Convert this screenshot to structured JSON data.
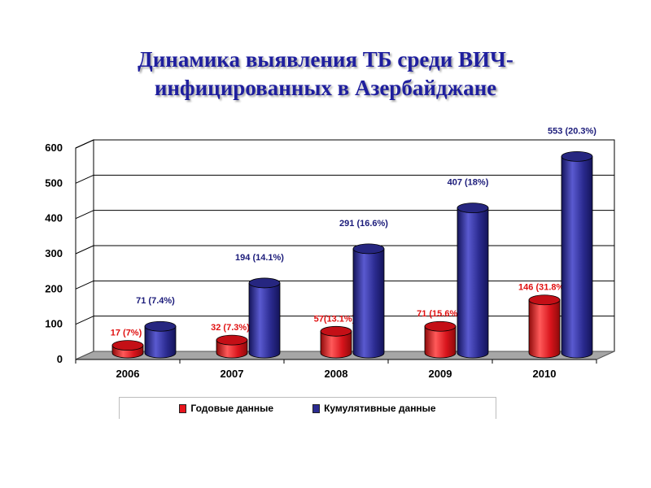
{
  "title_lines": [
    "Динамика выявления ТБ среди ВИЧ-",
    "инфицированных в Азербайджане"
  ],
  "colors": {
    "title": "#1f1f9e",
    "annual": "#e8141c",
    "cumulative": "#2b2b90",
    "annual_label": "#e01010",
    "cumulative_label": "#1b1b7a",
    "floor": "#a6a6a6",
    "grid": "#000000"
  },
  "legend": {
    "annual": "Годовые данные",
    "cumulative": "Кумулятивные данные"
  },
  "chart_data": {
    "type": "bar",
    "subtype": "3d-cylinder",
    "categories": [
      "2006",
      "2007",
      "2008",
      "2009",
      "2010"
    ],
    "ylim": [
      0,
      600
    ],
    "yticks": [
      0,
      100,
      200,
      300,
      400,
      500,
      600
    ],
    "grid": true,
    "legend_position": "bottom",
    "series": [
      {
        "name": "Годовые данные",
        "values": [
          17,
          32,
          57,
          71,
          146
        ],
        "labels": [
          "17 (7%)",
          "32 (7.3%)",
          "57(13.1%)",
          "71 (15.6%)",
          "146 (31.8%)"
        ]
      },
      {
        "name": "Кумулятивные данные",
        "values": [
          71,
          194,
          291,
          407,
          553
        ],
        "labels": [
          "71 (7.4%)",
          "194 (14.1%)",
          "291 (16.6%)",
          "407 (18%)",
          "553 (20.3%)"
        ]
      }
    ]
  }
}
